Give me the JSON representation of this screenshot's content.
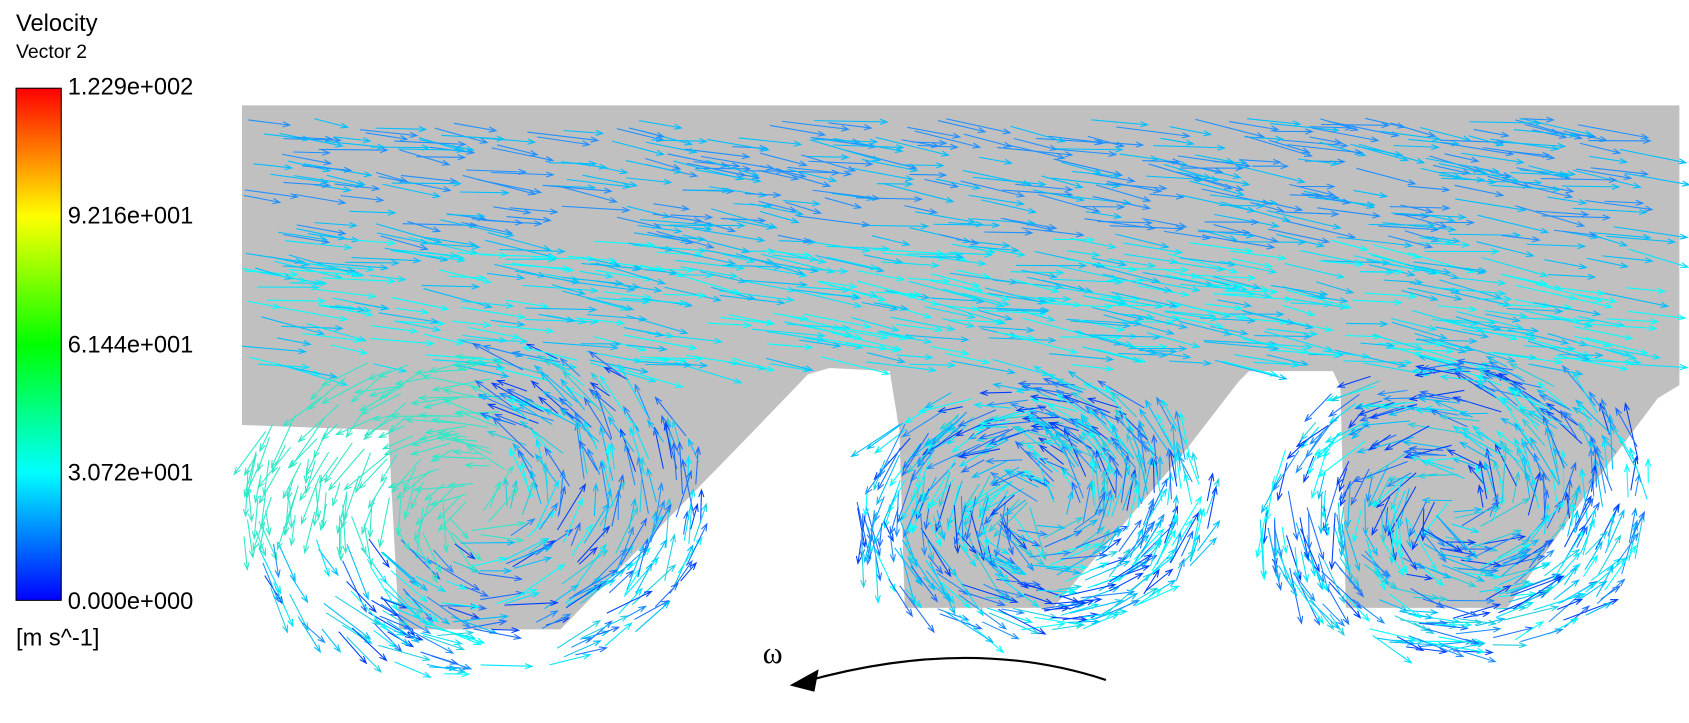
{
  "legend": {
    "title": "Velocity",
    "subtitle": "Vector 2",
    "labels": [
      "1.229e+002",
      "9.216e+001",
      "6.144e+001",
      "3.072e+001",
      "0.000e+000"
    ],
    "unit": "[m s^-1]"
  },
  "annotation": "ω"
}
